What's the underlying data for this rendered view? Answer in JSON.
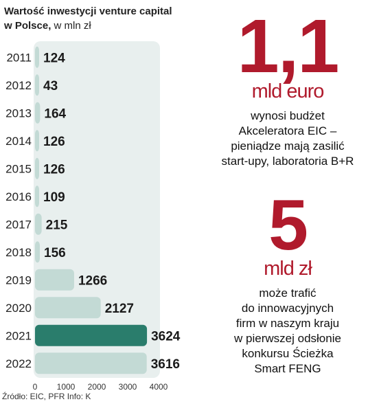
{
  "chart_data": {
    "type": "bar",
    "orientation": "horizontal",
    "title": "Wartość inwestycji venture capital w Polsce, w mln zł",
    "title_parts": [
      "Wartość inwestycji venture capital",
      "w Polsce,",
      " w mln zł"
    ],
    "categories": [
      "2011",
      "2012",
      "2013",
      "2014",
      "2015",
      "2016",
      "2017",
      "2018",
      "2019",
      "2020",
      "2021",
      "2022"
    ],
    "values": [
      124,
      43,
      164,
      126,
      126,
      109,
      215,
      156,
      1266,
      2127,
      3624,
      3616
    ],
    "value_labels": [
      "124",
      "43",
      "164",
      "126",
      "126",
      "109",
      "215",
      "156",
      "1266",
      "2127",
      "3624",
      "3616"
    ],
    "highlight": "2021",
    "xlim": [
      0,
      4000
    ],
    "x_ticks": [
      0,
      1000,
      2000,
      3000,
      4000
    ],
    "x_tick_labels": [
      "0",
      "1000",
      "2000",
      "3000",
      "4000"
    ],
    "grid": false,
    "colors": {
      "bar": "#c3dad5",
      "highlight": "#2a7d6c",
      "track": "#e8efee"
    }
  },
  "source": "Źródło: EIC, PFR Info: K",
  "callouts": [
    {
      "number": "1,1",
      "unit": "mld euro",
      "lines": [
        "wynosi budżet",
        "Akceleratora EIC –",
        "pieniądze mają zasilić",
        "start-upy, laboratoria B+R"
      ]
    },
    {
      "number": "5",
      "unit": "mld zł",
      "lines": [
        "może trafić",
        "do innowacyjnych",
        "firm w naszym kraju",
        "w pierwszej odsłonie",
        "konkursu Ścieżka",
        "Smart FENG"
      ]
    }
  ],
  "colors": {
    "accent_red": "#b01a2c"
  }
}
